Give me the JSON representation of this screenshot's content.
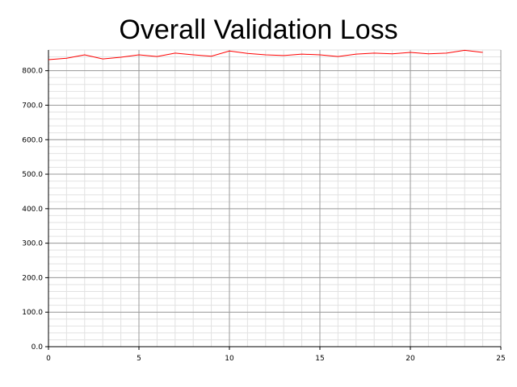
{
  "chart_data": {
    "type": "line",
    "title": "Overall Validation Loss",
    "xlabel": "",
    "ylabel": "",
    "xlim": [
      0,
      25
    ],
    "ylim": [
      0,
      860
    ],
    "x_ticks": [
      0,
      5,
      10,
      15,
      20,
      25
    ],
    "x_tick_labels": [
      "0",
      "5",
      "10",
      "15",
      "20",
      "25"
    ],
    "y_ticks": [
      0,
      100,
      200,
      300,
      400,
      500,
      600,
      700,
      800
    ],
    "y_tick_labels": [
      "0.0",
      "100.0",
      "200.0",
      "300.0",
      "400.0",
      "500.0",
      "600.0",
      "700.0",
      "800.0"
    ],
    "grid": true,
    "minor_grid": true,
    "series": [
      {
        "color": "#ff0000",
        "x": [
          0,
          1,
          2,
          3,
          4,
          5,
          6,
          7,
          8,
          9,
          10,
          11,
          12,
          13,
          14,
          15,
          16,
          17,
          18,
          19,
          20,
          21,
          22,
          23,
          24
        ],
        "y": [
          832,
          836,
          846,
          834,
          839,
          846,
          841,
          851,
          846,
          842,
          857,
          850,
          846,
          844,
          848,
          846,
          841,
          848,
          851,
          849,
          853,
          849,
          851,
          859,
          853
        ]
      }
    ]
  }
}
